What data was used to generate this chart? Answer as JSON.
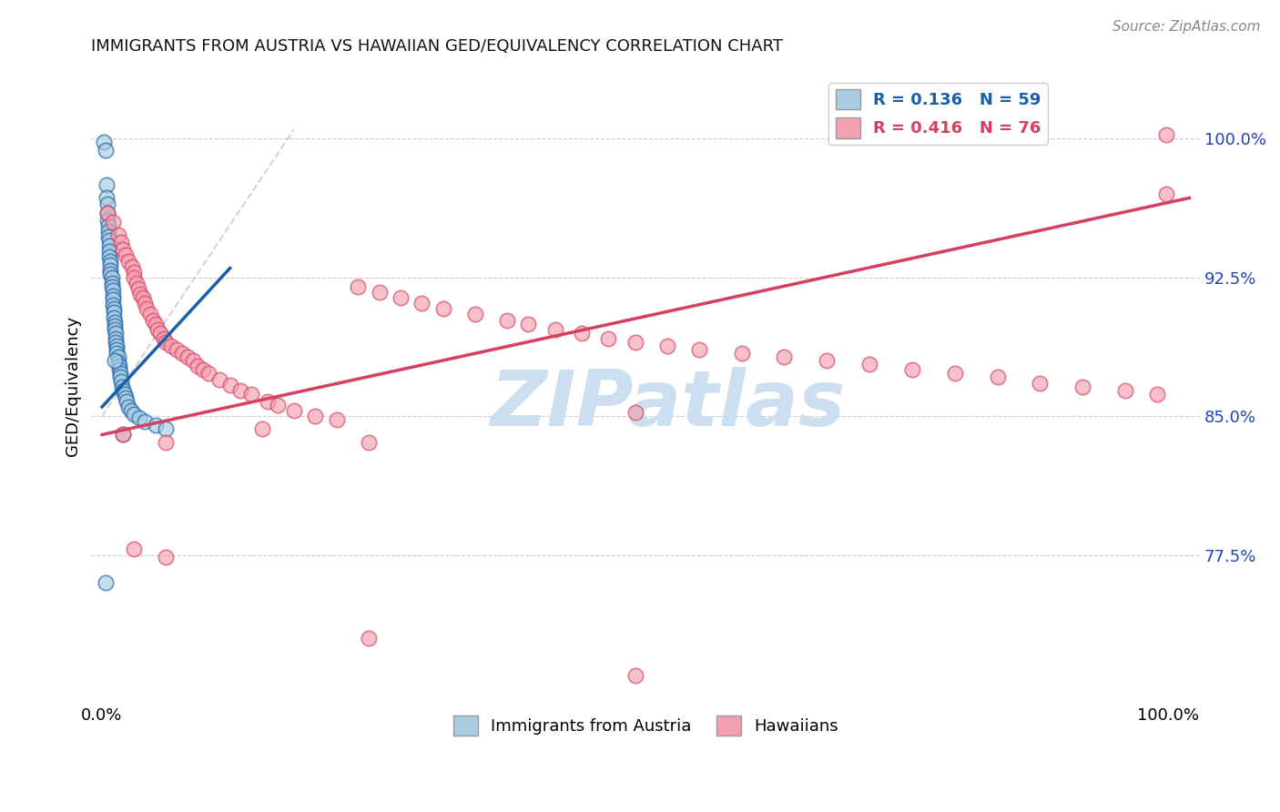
{
  "title": "IMMIGRANTS FROM AUSTRIA VS HAWAIIAN GED/EQUIVALENCY CORRELATION CHART",
  "source": "Source: ZipAtlas.com",
  "ylabel": "GED/Equivalency",
  "yticks_labels": [
    "77.5%",
    "85.0%",
    "92.5%",
    "100.0%"
  ],
  "yticks_values": [
    0.775,
    0.85,
    0.925,
    1.0
  ],
  "xticks_labels": [
    "0.0%",
    "100.0%"
  ],
  "xticks_values": [
    0.0,
    1.0
  ],
  "xlim": [
    -0.01,
    1.03
  ],
  "ylim": [
    0.695,
    1.038
  ],
  "legend_blue_r": "R = 0.136",
  "legend_blue_n": "N = 59",
  "legend_pink_r": "R = 0.416",
  "legend_pink_n": "N = 76",
  "legend_label_blue": "Immigrants from Austria",
  "legend_label_pink": "Hawaiians",
  "blue_scatter_color": "#a8cce0",
  "pink_scatter_color": "#f4a0b0",
  "blue_line_color": "#1a5fa8",
  "pink_line_color": "#d64060",
  "gray_line_color": "#b0b0b0",
  "title_color": "#111111",
  "source_color": "#888888",
  "ytick_color": "#2244bb",
  "grid_color": "#cccccc",
  "background_color": "#ffffff",
  "blue_x": [
    0.002,
    0.003,
    0.004,
    0.004,
    0.005,
    0.005,
    0.005,
    0.006,
    0.006,
    0.006,
    0.007,
    0.007,
    0.007,
    0.007,
    0.008,
    0.008,
    0.008,
    0.008,
    0.009,
    0.009,
    0.009,
    0.01,
    0.01,
    0.01,
    0.01,
    0.011,
    0.011,
    0.011,
    0.012,
    0.012,
    0.012,
    0.013,
    0.013,
    0.013,
    0.014,
    0.014,
    0.014,
    0.015,
    0.015,
    0.016,
    0.016,
    0.017,
    0.017,
    0.018,
    0.019,
    0.02,
    0.021,
    0.022,
    0.023,
    0.025,
    0.027,
    0.03,
    0.035,
    0.04,
    0.05,
    0.06,
    0.02,
    0.012,
    0.003
  ],
  "blue_y": [
    0.998,
    0.994,
    0.975,
    0.968,
    0.965,
    0.96,
    0.956,
    0.953,
    0.95,
    0.947,
    0.945,
    0.942,
    0.939,
    0.936,
    0.934,
    0.932,
    0.929,
    0.927,
    0.925,
    0.922,
    0.92,
    0.918,
    0.915,
    0.913,
    0.91,
    0.908,
    0.906,
    0.903,
    0.901,
    0.899,
    0.897,
    0.895,
    0.892,
    0.89,
    0.888,
    0.886,
    0.884,
    0.882,
    0.879,
    0.877,
    0.875,
    0.873,
    0.871,
    0.869,
    0.866,
    0.864,
    0.862,
    0.86,
    0.858,
    0.855,
    0.853,
    0.851,
    0.849,
    0.847,
    0.845,
    0.843,
    0.84,
    0.88,
    0.76
  ],
  "pink_x": [
    0.005,
    0.01,
    0.015,
    0.018,
    0.02,
    0.022,
    0.025,
    0.028,
    0.03,
    0.03,
    0.032,
    0.034,
    0.036,
    0.038,
    0.04,
    0.042,
    0.045,
    0.048,
    0.05,
    0.052,
    0.055,
    0.058,
    0.06,
    0.065,
    0.07,
    0.075,
    0.08,
    0.085,
    0.09,
    0.095,
    0.1,
    0.11,
    0.12,
    0.13,
    0.14,
    0.155,
    0.165,
    0.18,
    0.2,
    0.22,
    0.24,
    0.26,
    0.28,
    0.3,
    0.32,
    0.35,
    0.38,
    0.4,
    0.425,
    0.45,
    0.475,
    0.5,
    0.53,
    0.56,
    0.6,
    0.64,
    0.68,
    0.72,
    0.76,
    0.8,
    0.84,
    0.88,
    0.92,
    0.96,
    0.99,
    0.998,
    0.02,
    0.06,
    0.15,
    0.25,
    0.5,
    0.03,
    0.06,
    0.25,
    0.5,
    0.998
  ],
  "pink_y": [
    0.96,
    0.955,
    0.948,
    0.944,
    0.94,
    0.937,
    0.934,
    0.931,
    0.928,
    0.925,
    0.922,
    0.919,
    0.916,
    0.914,
    0.911,
    0.908,
    0.905,
    0.902,
    0.9,
    0.897,
    0.895,
    0.892,
    0.89,
    0.888,
    0.886,
    0.884,
    0.882,
    0.88,
    0.877,
    0.875,
    0.873,
    0.87,
    0.867,
    0.864,
    0.862,
    0.858,
    0.856,
    0.853,
    0.85,
    0.848,
    0.92,
    0.917,
    0.914,
    0.911,
    0.908,
    0.905,
    0.902,
    0.9,
    0.897,
    0.895,
    0.892,
    0.89,
    0.888,
    0.886,
    0.884,
    0.882,
    0.88,
    0.878,
    0.875,
    0.873,
    0.871,
    0.868,
    0.866,
    0.864,
    0.862,
    0.97,
    0.84,
    0.836,
    0.843,
    0.836,
    0.852,
    0.778,
    0.774,
    0.73,
    0.71,
    1.002
  ],
  "blue_line_x": [
    0.0,
    0.12
  ],
  "blue_line_y": [
    0.855,
    0.93
  ],
  "gray_line_x": [
    0.0,
    0.18
  ],
  "gray_line_y": [
    0.85,
    1.005
  ],
  "pink_line_x": [
    0.0,
    1.02
  ],
  "pink_line_y": [
    0.84,
    0.968
  ]
}
